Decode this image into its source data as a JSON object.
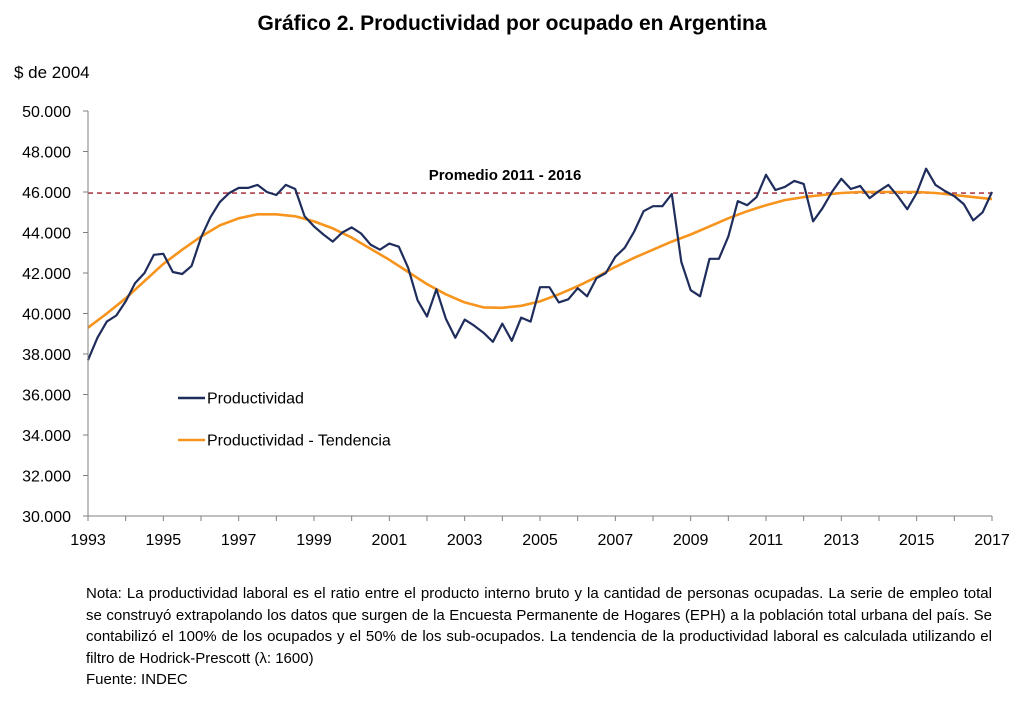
{
  "title": "Gráfico 2. Productividad por ocupado en Argentina",
  "chart_data": {
    "type": "line",
    "title": "Gráfico 2. Productividad por ocupado en Argentina",
    "ylabel": "$ de 2004",
    "xlabel": "",
    "ylim": [
      30000,
      50000
    ],
    "xlim": [
      1993,
      2017
    ],
    "yticks": [
      {
        "value": 30000,
        "label": "30.000"
      },
      {
        "value": 32000,
        "label": "32.000"
      },
      {
        "value": 34000,
        "label": "34.000"
      },
      {
        "value": 36000,
        "label": "36.000"
      },
      {
        "value": 38000,
        "label": "38.000"
      },
      {
        "value": 40000,
        "label": "40.000"
      },
      {
        "value": 42000,
        "label": "42.000"
      },
      {
        "value": 44000,
        "label": "44.000"
      },
      {
        "value": 46000,
        "label": "46.000"
      },
      {
        "value": 48000,
        "label": "48.000"
      },
      {
        "value": 50000,
        "label": "50.000"
      }
    ],
    "xticks": [
      "1993",
      "1995",
      "1997",
      "1999",
      "2001",
      "2003",
      "2005",
      "2007",
      "2009",
      "2011",
      "2013",
      "2015",
      "2017"
    ],
    "grid": false,
    "legend_position": "inside-left",
    "reference_line": {
      "label": "Promedio 2011 - 2016",
      "value": 45950,
      "color": "#a01c2c"
    },
    "series": [
      {
        "name": "Productividad",
        "color": "#1f2d5c",
        "points": [
          [
            1993.0,
            37700
          ],
          [
            1993.25,
            38800
          ],
          [
            1993.5,
            39600
          ],
          [
            1993.75,
            39900
          ],
          [
            1994.0,
            40600
          ],
          [
            1994.25,
            41500
          ],
          [
            1994.5,
            42000
          ],
          [
            1994.75,
            42900
          ],
          [
            1995.0,
            42950
          ],
          [
            1995.25,
            42050
          ],
          [
            1995.5,
            41950
          ],
          [
            1995.75,
            42350
          ],
          [
            1996.0,
            43750
          ],
          [
            1996.25,
            44750
          ],
          [
            1996.5,
            45500
          ],
          [
            1996.75,
            45950
          ],
          [
            1997.0,
            46200
          ],
          [
            1997.25,
            46200
          ],
          [
            1997.5,
            46350
          ],
          [
            1997.75,
            46000
          ],
          [
            1998.0,
            45850
          ],
          [
            1998.25,
            46350
          ],
          [
            1998.5,
            46150
          ],
          [
            1998.75,
            44800
          ],
          [
            1999.0,
            44300
          ],
          [
            1999.25,
            43900
          ],
          [
            1999.5,
            43550
          ],
          [
            1999.75,
            44000
          ],
          [
            2000.0,
            44250
          ],
          [
            2000.25,
            43950
          ],
          [
            2000.5,
            43400
          ],
          [
            2000.75,
            43150
          ],
          [
            2001.0,
            43450
          ],
          [
            2001.25,
            43300
          ],
          [
            2001.5,
            42250
          ],
          [
            2001.75,
            40650
          ],
          [
            2002.0,
            39850
          ],
          [
            2002.25,
            41200
          ],
          [
            2002.5,
            39750
          ],
          [
            2002.75,
            38800
          ],
          [
            2003.0,
            39700
          ],
          [
            2003.25,
            39400
          ],
          [
            2003.5,
            39050
          ],
          [
            2003.75,
            38600
          ],
          [
            2004.0,
            39500
          ],
          [
            2004.25,
            38650
          ],
          [
            2004.5,
            39800
          ],
          [
            2004.75,
            39600
          ],
          [
            2005.0,
            41300
          ],
          [
            2005.25,
            41300
          ],
          [
            2005.5,
            40550
          ],
          [
            2005.75,
            40700
          ],
          [
            2006.0,
            41250
          ],
          [
            2006.25,
            40850
          ],
          [
            2006.5,
            41750
          ],
          [
            2006.75,
            42000
          ],
          [
            2007.0,
            42800
          ],
          [
            2007.25,
            43250
          ],
          [
            2007.5,
            44050
          ],
          [
            2007.75,
            45050
          ],
          [
            2008.0,
            45300
          ],
          [
            2008.25,
            45300
          ],
          [
            2008.5,
            45900
          ],
          [
            2008.75,
            42550
          ],
          [
            2009.0,
            41150
          ],
          [
            2009.25,
            40850
          ],
          [
            2009.5,
            42700
          ],
          [
            2009.75,
            42700
          ],
          [
            2010.0,
            43800
          ],
          [
            2010.25,
            45550
          ],
          [
            2010.5,
            45350
          ],
          [
            2010.75,
            45750
          ],
          [
            2011.0,
            46850
          ],
          [
            2011.25,
            46100
          ],
          [
            2011.5,
            46250
          ],
          [
            2011.75,
            46550
          ],
          [
            2012.0,
            46400
          ],
          [
            2012.25,
            44550
          ],
          [
            2012.5,
            45200
          ],
          [
            2012.75,
            46000
          ],
          [
            2013.0,
            46650
          ],
          [
            2013.25,
            46150
          ],
          [
            2013.5,
            46300
          ],
          [
            2013.75,
            45700
          ],
          [
            2014.0,
            46050
          ],
          [
            2014.25,
            46350
          ],
          [
            2014.5,
            45800
          ],
          [
            2014.75,
            45150
          ],
          [
            2015.0,
            45950
          ],
          [
            2015.25,
            47150
          ],
          [
            2015.5,
            46350
          ],
          [
            2015.75,
            46050
          ],
          [
            2016.0,
            45800
          ],
          [
            2016.25,
            45400
          ],
          [
            2016.5,
            44600
          ],
          [
            2016.75,
            45000
          ],
          [
            2017.0,
            46000
          ]
        ]
      },
      {
        "name": "Productividad - Tendencia",
        "color": "#f7941d",
        "points": [
          [
            1993.0,
            39300
          ],
          [
            1993.5,
            40000
          ],
          [
            1994.0,
            40750
          ],
          [
            1994.5,
            41600
          ],
          [
            1995.0,
            42450
          ],
          [
            1995.5,
            43150
          ],
          [
            1996.0,
            43800
          ],
          [
            1996.5,
            44350
          ],
          [
            1997.0,
            44700
          ],
          [
            1997.5,
            44900
          ],
          [
            1998.0,
            44900
          ],
          [
            1998.5,
            44800
          ],
          [
            1999.0,
            44550
          ],
          [
            1999.5,
            44200
          ],
          [
            2000.0,
            43750
          ],
          [
            2000.5,
            43200
          ],
          [
            2001.0,
            42650
          ],
          [
            2001.5,
            42050
          ],
          [
            2002.0,
            41450
          ],
          [
            2002.5,
            40950
          ],
          [
            2003.0,
            40550
          ],
          [
            2003.5,
            40300
          ],
          [
            2004.0,
            40280
          ],
          [
            2004.5,
            40380
          ],
          [
            2005.0,
            40600
          ],
          [
            2005.5,
            40950
          ],
          [
            2006.0,
            41350
          ],
          [
            2006.5,
            41800
          ],
          [
            2007.0,
            42300
          ],
          [
            2007.5,
            42750
          ],
          [
            2008.0,
            43150
          ],
          [
            2008.5,
            43550
          ],
          [
            2009.0,
            43900
          ],
          [
            2009.5,
            44300
          ],
          [
            2010.0,
            44700
          ],
          [
            2010.5,
            45050
          ],
          [
            2011.0,
            45350
          ],
          [
            2011.5,
            45600
          ],
          [
            2012.0,
            45750
          ],
          [
            2012.5,
            45850
          ],
          [
            2013.0,
            45950
          ],
          [
            2013.5,
            46000
          ],
          [
            2014.0,
            46000
          ],
          [
            2014.5,
            46000
          ],
          [
            2015.0,
            46000
          ],
          [
            2015.5,
            45950
          ],
          [
            2016.0,
            45850
          ],
          [
            2016.5,
            45750
          ],
          [
            2017.0,
            45650
          ]
        ]
      }
    ]
  },
  "note": {
    "text": "Nota: La productividad laboral es el ratio entre el producto interno bruto y la cantidad de personas ocupadas. La serie de empleo total se construyó extrapolando los datos que surgen de la Encuesta Permanente de Hogares (EPH) a la población total urbana del país. Se contabilizó el 100% de los ocupados y el 50% de los sub-ocupados. La tendencia de la productividad laboral es calculada utilizando el filtro de Hodrick-Prescott (λ: 1600)",
    "source": "Fuente: INDEC"
  }
}
